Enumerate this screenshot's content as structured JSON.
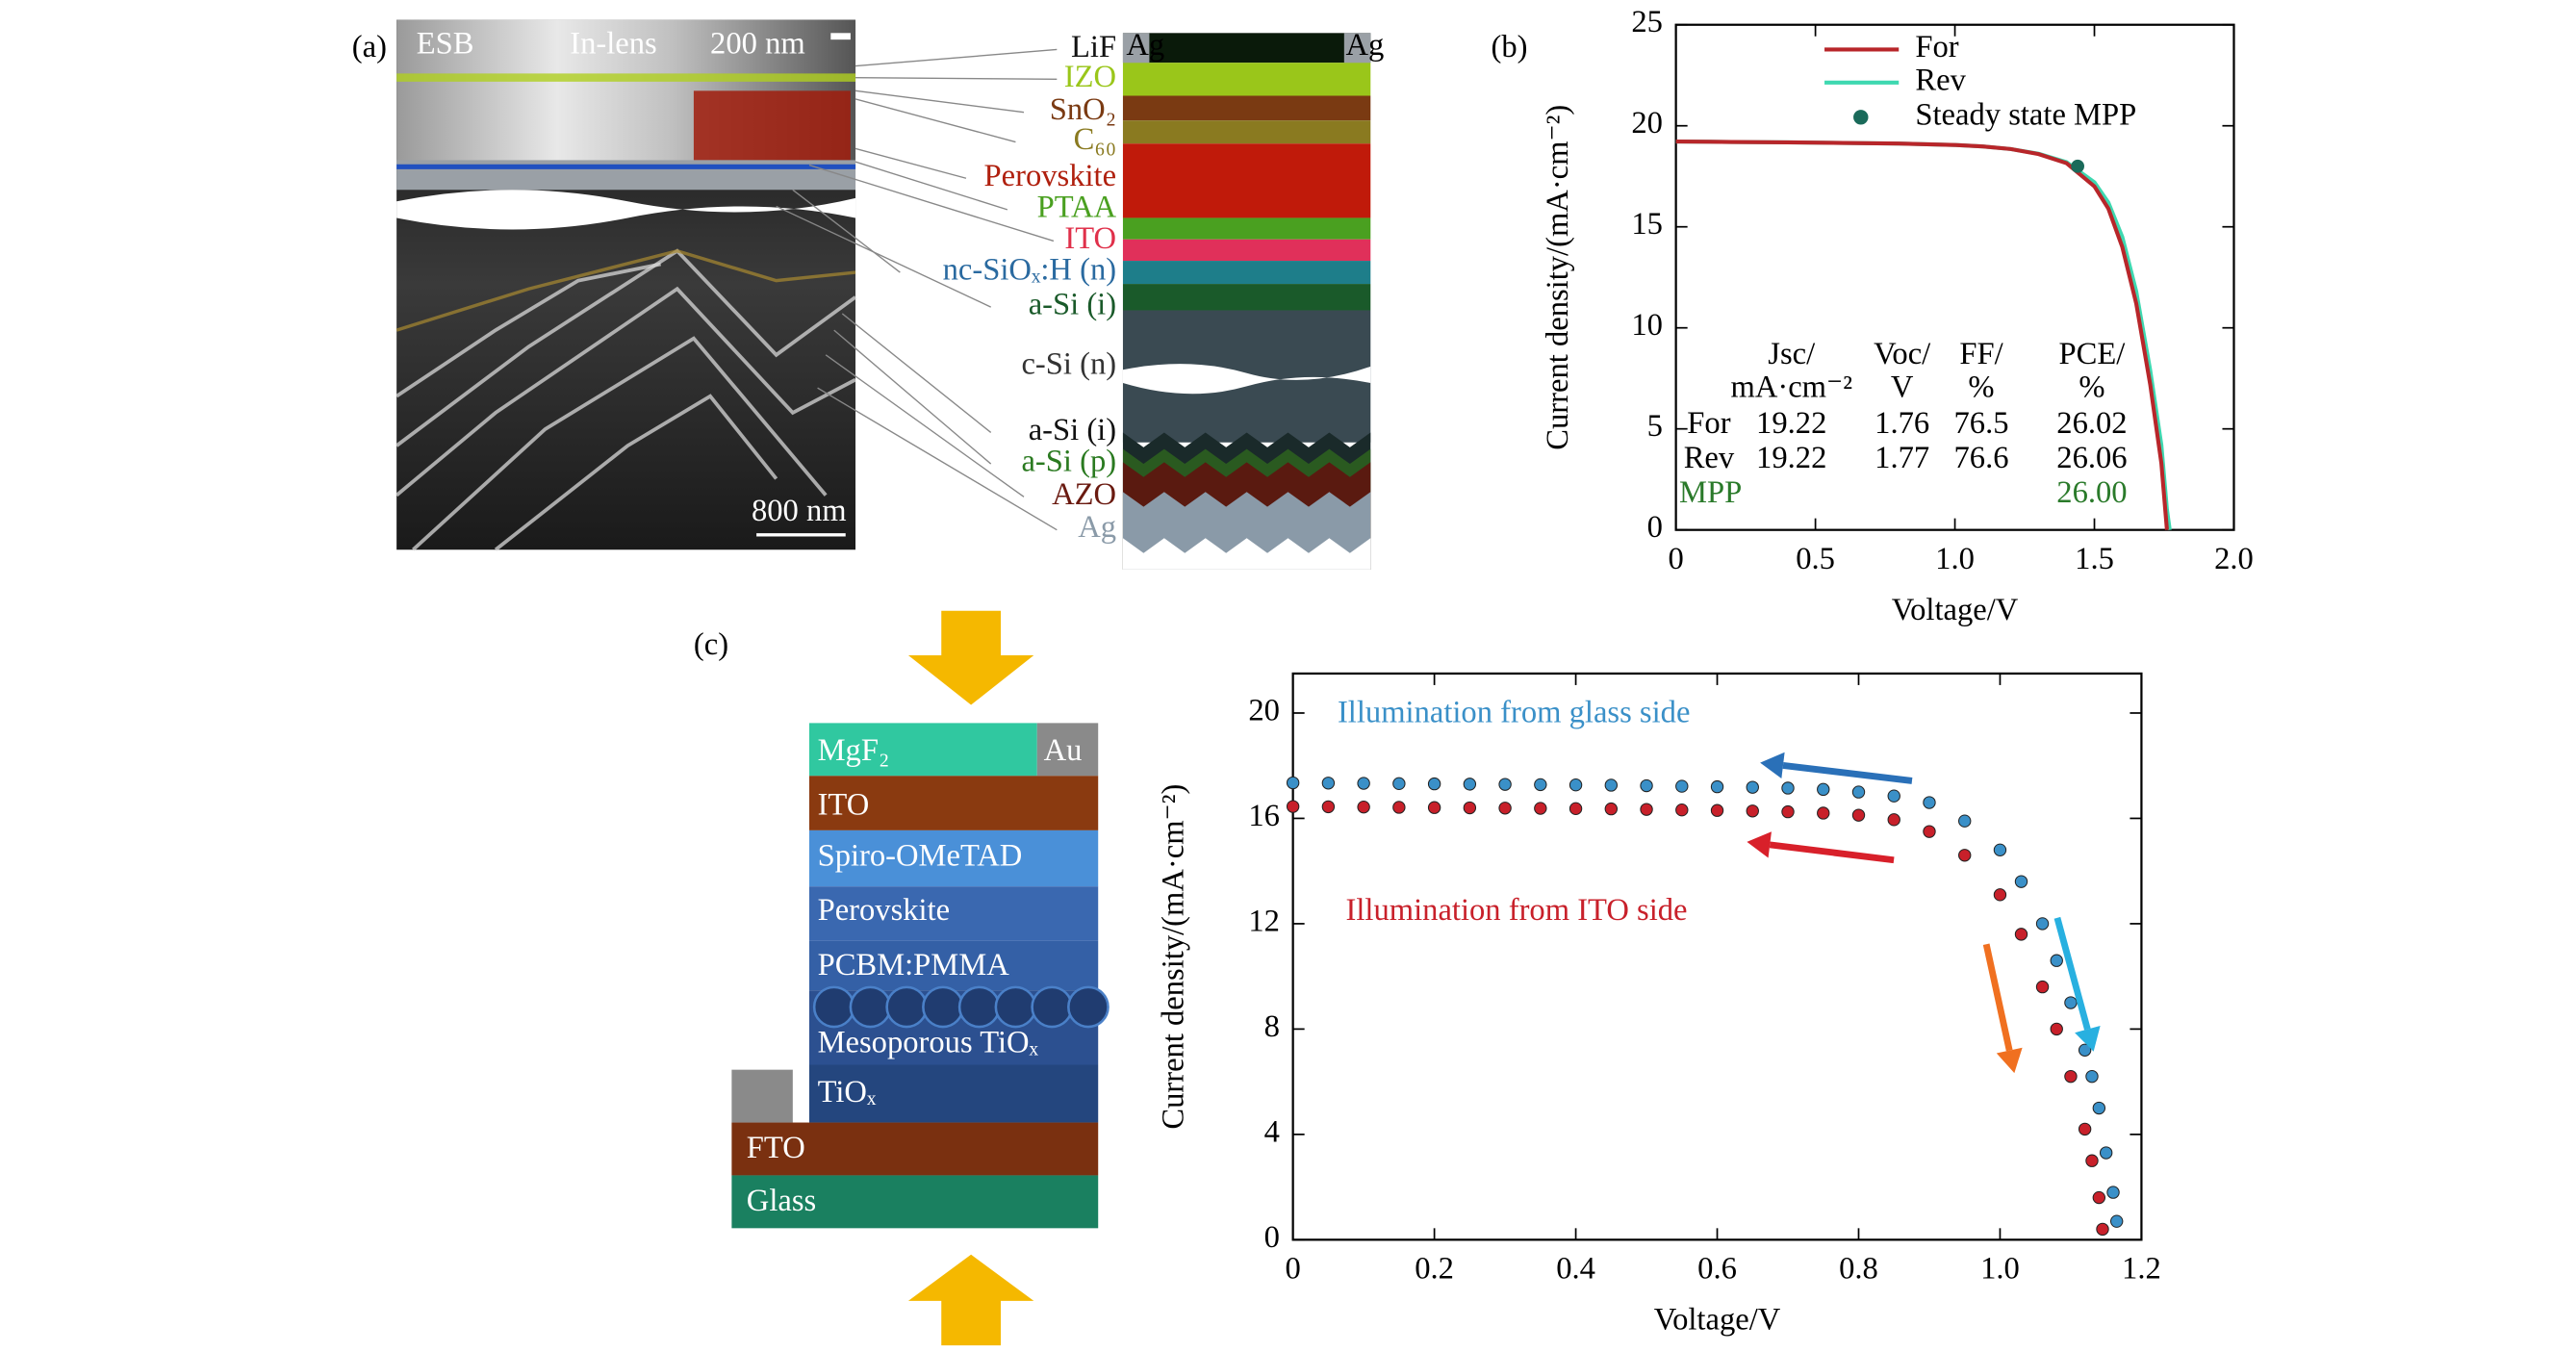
{
  "panel_labels": [
    "(a)",
    "(b)",
    "(c)"
  ],
  "sem_image": {
    "detector": "ESB",
    "mode": "In-lens",
    "scale_top": "200 nm",
    "scale_bottom": "800 nm"
  },
  "stack_a": {
    "contacts": [
      "Ag",
      "Ag"
    ],
    "layers": [
      {
        "label": "LiF",
        "color": "#111111"
      },
      {
        "label": "IZO",
        "color": "#9ac61a"
      },
      {
        "label": "SnO₂",
        "color": "#7a3a12"
      },
      {
        "label": "C₆₀",
        "color": "#8a7a20"
      },
      {
        "label": "Perovskite",
        "color": "#b0200e"
      },
      {
        "label": "PTAA",
        "color": "#4aa020"
      },
      {
        "label": "ITO",
        "color": "#e0304a"
      },
      {
        "label": "nc-SiOₓ:H (n)",
        "color": "#2a6aa0"
      },
      {
        "label": "a-Si (i)",
        "color": "#1a5a2a"
      },
      {
        "label": "c-Si (n)",
        "color": "#333333"
      },
      {
        "label": "a-Si (i)",
        "color": "#111111"
      },
      {
        "label": "a-Si (p)",
        "color": "#2a7a20"
      },
      {
        "label": "AZO",
        "color": "#6a1a10"
      },
      {
        "label": "Ag",
        "color": "#8a9aa8"
      }
    ]
  },
  "stack_c": {
    "layers": [
      "MgF₂",
      "Au",
      "ITO",
      "Spiro-OMeTAD",
      "Perovskite",
      "PCBM:PMMA",
      "Mesoporous TiOₓ",
      "TiOₓ",
      "FTO",
      "Glass"
    ]
  },
  "chart_data": [
    {
      "type": "line",
      "xlabel": "Voltage/V",
      "ylabel": "Current density/(mA·cm⁻²)",
      "x": [
        0,
        0.2,
        0.4,
        0.6,
        0.8,
        1.0,
        1.1,
        1.2,
        1.3,
        1.4,
        1.5,
        1.55,
        1.6,
        1.65,
        1.7,
        1.74,
        1.76,
        1.77
      ],
      "series": [
        {
          "name": "For",
          "color": "#b8262a",
          "values": [
            19.22,
            19.2,
            19.18,
            19.15,
            19.12,
            19.05,
            18.98,
            18.85,
            18.6,
            18.15,
            17.0,
            15.9,
            14.0,
            11.2,
            7.2,
            3.3,
            0,
            null
          ]
        },
        {
          "name": "Rev",
          "color": "#3ed8b0",
          "values": [
            19.22,
            19.2,
            19.18,
            19.15,
            19.12,
            19.05,
            18.98,
            18.85,
            18.62,
            18.2,
            17.2,
            16.2,
            14.5,
            11.8,
            7.9,
            4.2,
            1.0,
            0
          ]
        }
      ],
      "mpp": {
        "name": "Steady state MPP",
        "color": "#1a6a5a",
        "x": 1.44,
        "y": 18.0
      },
      "xlim": [
        0,
        2
      ],
      "xticks": [
        0,
        0.5,
        {
          "value": 1,
          "label": "1.0"
        },
        1.5,
        {
          "value": 2,
          "label": "2.0"
        }
      ],
      "ylim": [
        0,
        25
      ],
      "yticks": [
        0,
        5,
        10,
        15,
        20,
        25
      ],
      "table": {
        "header": [
          [
            "Jsc/",
            "Voc/",
            "FF/",
            "PCE/"
          ],
          [
            "mA·cm⁻²",
            "V",
            "%",
            "%"
          ]
        ],
        "rows": [
          [
            "For",
            "19.22",
            "1.76",
            "76.5",
            "26.02"
          ],
          [
            "Rev",
            "19.22",
            "1.77",
            "76.6",
            "26.06"
          ]
        ],
        "mpp": [
          "MPP",
          "26.00"
        ]
      }
    },
    {
      "type": "scatter",
      "xlabel": "Voltage/V",
      "ylabel": "Current density/(mA·cm⁻²)",
      "series": [
        {
          "name": "Illumination from glass side",
          "color": "#3a90c8",
          "x": [
            0,
            0.05,
            0.1,
            0.15,
            0.2,
            0.25,
            0.3,
            0.35,
            0.4,
            0.45,
            0.5,
            0.55,
            0.6,
            0.65,
            0.7,
            0.75,
            0.8,
            0.85,
            0.9,
            0.95,
            1.0,
            1.03,
            1.06,
            1.08,
            1.1,
            1.12,
            1.13,
            1.14,
            1.15,
            1.16,
            1.165
          ],
          "values": [
            17.35,
            17.34,
            17.33,
            17.32,
            17.31,
            17.3,
            17.29,
            17.28,
            17.27,
            17.26,
            17.24,
            17.22,
            17.2,
            17.18,
            17.15,
            17.1,
            17.0,
            16.85,
            16.6,
            15.9,
            14.8,
            13.6,
            12.0,
            10.6,
            9.0,
            7.2,
            6.2,
            5.0,
            3.3,
            1.8,
            0.7
          ]
        },
        {
          "name": "Illumination from ITO side",
          "color": "#c8202a",
          "x": [
            0,
            0.05,
            0.1,
            0.15,
            0.2,
            0.25,
            0.3,
            0.35,
            0.4,
            0.45,
            0.5,
            0.55,
            0.6,
            0.65,
            0.7,
            0.75,
            0.8,
            0.85,
            0.9,
            0.95,
            1.0,
            1.03,
            1.06,
            1.08,
            1.1,
            1.12,
            1.13,
            1.14,
            1.145
          ],
          "values": [
            16.45,
            16.44,
            16.43,
            16.42,
            16.41,
            16.4,
            16.39,
            16.38,
            16.37,
            16.36,
            16.34,
            16.32,
            16.3,
            16.28,
            16.25,
            16.2,
            16.12,
            15.95,
            15.5,
            14.6,
            13.1,
            11.6,
            9.6,
            8.0,
            6.2,
            4.2,
            3.0,
            1.6,
            0.4
          ]
        }
      ],
      "xlim": [
        0,
        1.2
      ],
      "xticks": [
        0,
        0.2,
        0.4,
        0.6,
        0.8,
        {
          "value": 1,
          "label": "1.0"
        },
        1.2
      ],
      "ylim": [
        0,
        21.5
      ],
      "yticks": [
        0,
        4,
        8,
        12,
        16,
        20
      ]
    }
  ]
}
